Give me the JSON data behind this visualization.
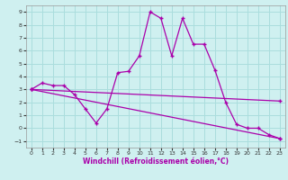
{
  "xlabel": "Windchill (Refroidissement éolien,°C)",
  "xlim": [
    -0.5,
    23.5
  ],
  "ylim": [
    -1.5,
    9.5
  ],
  "yticks": [
    -1,
    0,
    1,
    2,
    3,
    4,
    5,
    6,
    7,
    8,
    9
  ],
  "xticks": [
    0,
    1,
    2,
    3,
    4,
    5,
    6,
    7,
    8,
    9,
    10,
    11,
    12,
    13,
    14,
    15,
    16,
    17,
    18,
    19,
    20,
    21,
    22,
    23
  ],
  "bg_color": "#cff0f0",
  "grid_color": "#aadddd",
  "line_color": "#aa00aa",
  "line1_x": [
    0,
    1,
    2,
    3,
    4,
    5,
    6,
    7,
    8,
    9,
    10,
    11,
    12,
    13,
    14,
    15,
    16,
    17,
    18,
    19,
    20,
    21,
    22,
    23
  ],
  "line1_y": [
    3.0,
    3.5,
    3.3,
    3.3,
    2.6,
    1.5,
    0.4,
    1.5,
    4.3,
    4.4,
    5.6,
    9.0,
    8.5,
    5.6,
    8.5,
    6.5,
    6.5,
    4.5,
    2.0,
    0.3,
    0.0,
    0.0,
    -0.5,
    -0.8
  ],
  "line2_x": [
    0,
    23
  ],
  "line2_y": [
    3.0,
    2.1
  ],
  "line3_x": [
    0,
    23
  ],
  "line3_y": [
    3.0,
    -0.8
  ]
}
